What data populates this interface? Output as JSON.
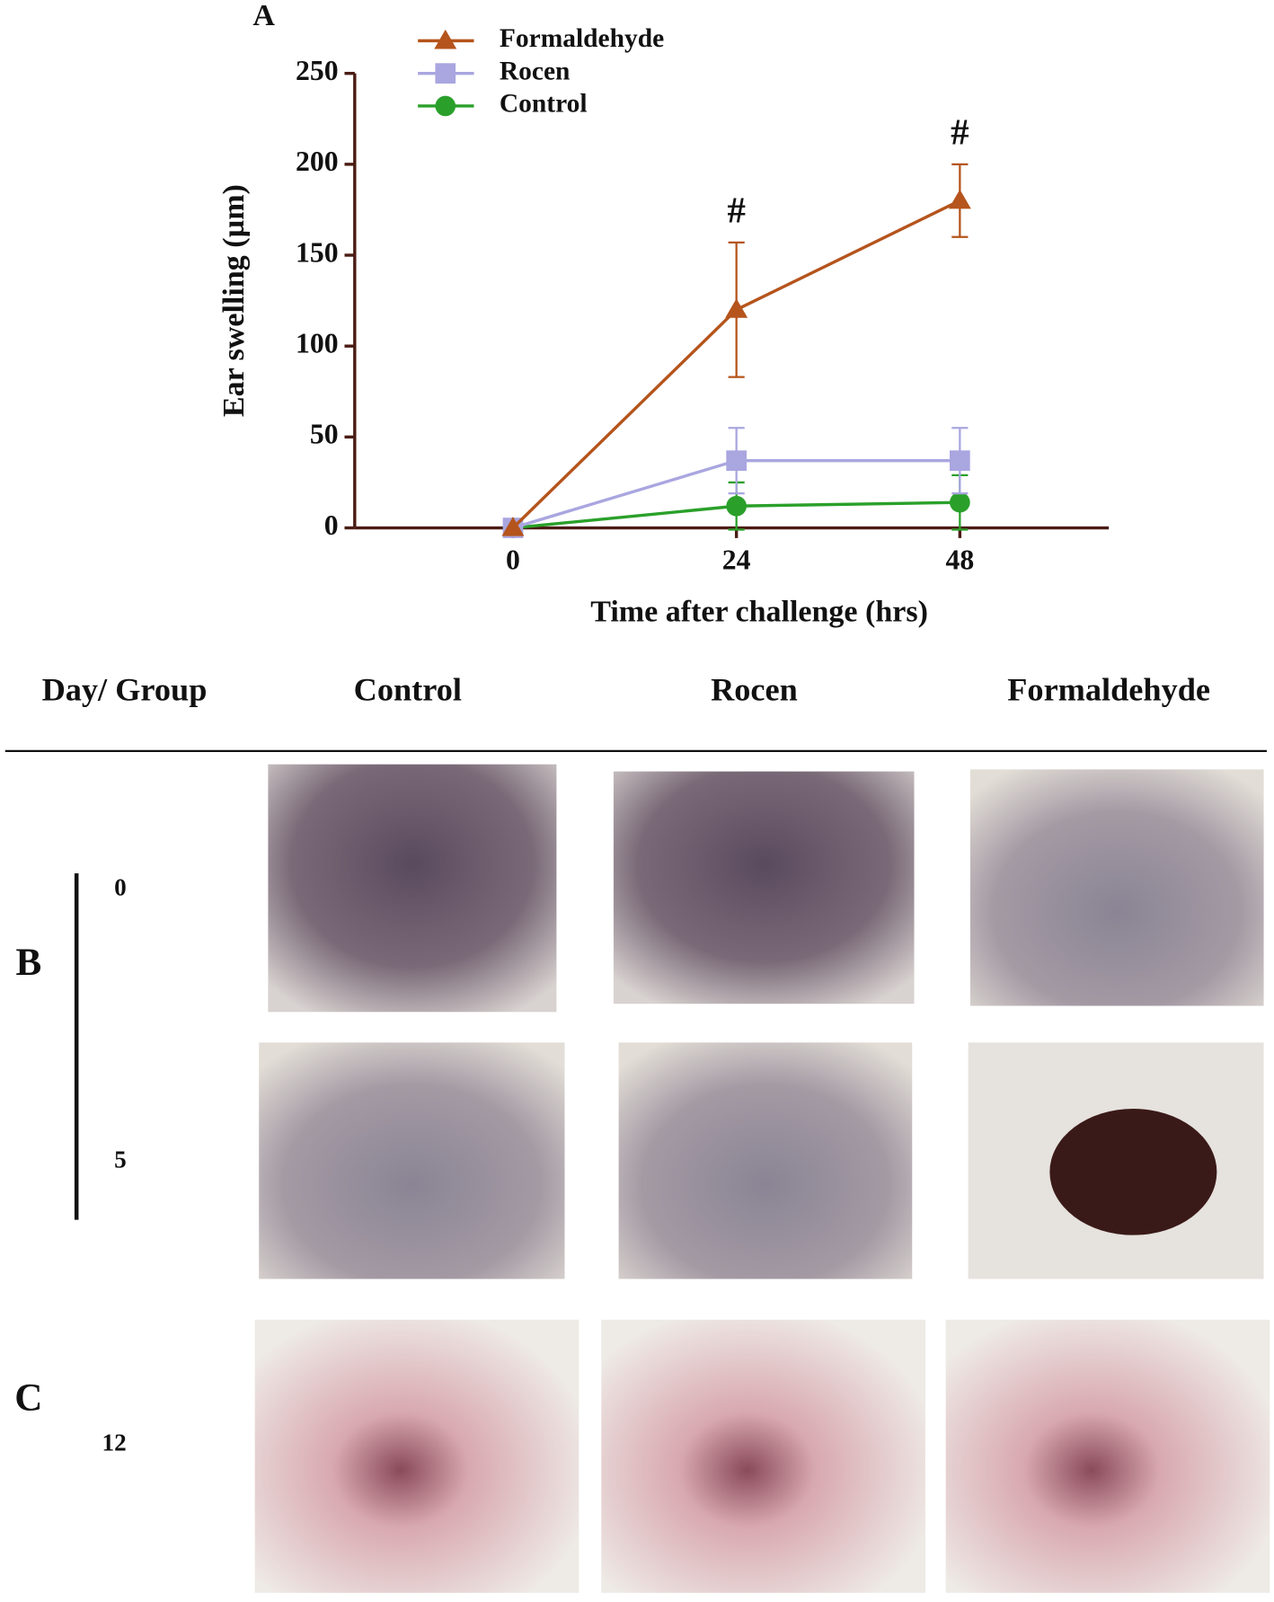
{
  "chart_data": {
    "type": "line",
    "panel": "A",
    "x_label": "Time after challenge (hrs)",
    "y_label": "Ear swelling (µm)",
    "x": [
      0,
      24,
      48
    ],
    "xlim": [
      -17,
      64
    ],
    "xticks": [
      0,
      24,
      48
    ],
    "ylim": [
      0,
      250
    ],
    "yticks": [
      0,
      50,
      100,
      150,
      200,
      250
    ],
    "legend": "top",
    "series": [
      {
        "name": "Formaldehyde",
        "color": "#b5541c",
        "marker": "triangle",
        "values": [
          0,
          120,
          180
        ],
        "errors": [
          0,
          37,
          20
        ]
      },
      {
        "name": "Rocen",
        "color": "#a9a6e0",
        "marker": "square",
        "values": [
          0,
          37,
          37
        ],
        "errors": [
          0,
          18,
          18
        ]
      },
      {
        "name": "Control",
        "color": "#2aa02a",
        "marker": "circle",
        "values": [
          0,
          12,
          14
        ],
        "errors": [
          0,
          13,
          15
        ]
      }
    ],
    "annotations": [
      {
        "text": "#",
        "x": 24
      },
      {
        "text": "#",
        "x": 48
      }
    ]
  },
  "photo_table": {
    "header": [
      "Day/ Group",
      "Control",
      "Rocen",
      "Formaldehyde"
    ],
    "panels": {
      "b": "B",
      "c": "C"
    },
    "days": [
      "0",
      "5",
      "12"
    ]
  }
}
